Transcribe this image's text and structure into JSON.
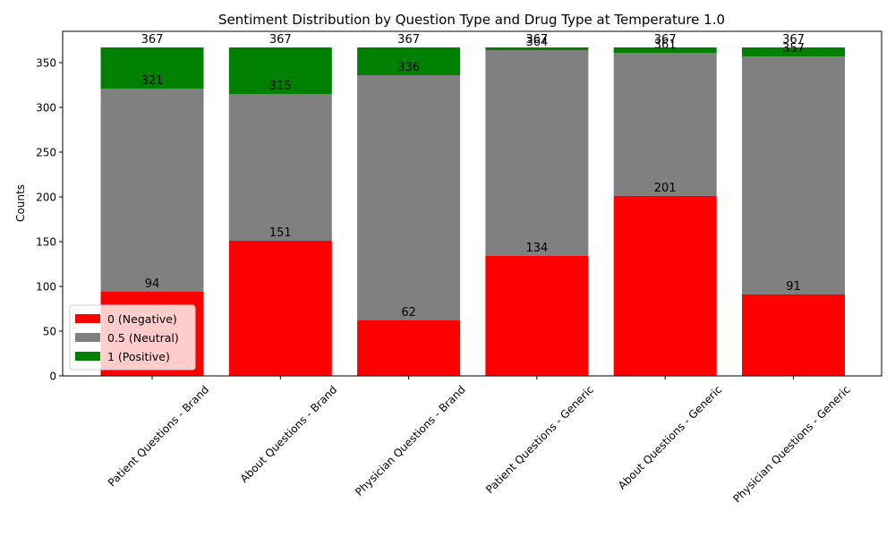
{
  "chart_data": {
    "type": "bar",
    "stacked": true,
    "title": "Sentiment Distribution by Question Type and Drug Type at Temperature 1.0",
    "xlabel": "",
    "ylabel": "Counts",
    "ylim": [
      0,
      385
    ],
    "yticks": [
      0,
      50,
      100,
      150,
      200,
      250,
      300,
      350
    ],
    "grid": false,
    "legend_position": "lower-left",
    "categories": [
      "Patient Questions - Brand",
      "About Questions - Brand",
      "Physician Questions - Brand",
      "Patient Questions - Generic",
      "About Questions - Generic",
      "Physician Questions - Generic"
    ],
    "series": [
      {
        "name": "0 (Negative)",
        "color": "#ff0000",
        "values": [
          94,
          151,
          62,
          134,
          201,
          91
        ]
      },
      {
        "name": "0.5 (Neutral)",
        "color": "#808080",
        "values": [
          227,
          164,
          274,
          230,
          160,
          266
        ]
      },
      {
        "name": "1 (Positive)",
        "color": "#008000",
        "values": [
          46,
          52,
          31,
          3,
          6,
          10
        ]
      }
    ],
    "data_labels": [
      [
        "94",
        "151",
        "62",
        "134",
        "201",
        "91"
      ],
      [
        "321",
        "315",
        "336",
        "364",
        "361",
        "357"
      ],
      [
        "367",
        "367",
        "367",
        "367",
        "367",
        "367"
      ]
    ]
  }
}
